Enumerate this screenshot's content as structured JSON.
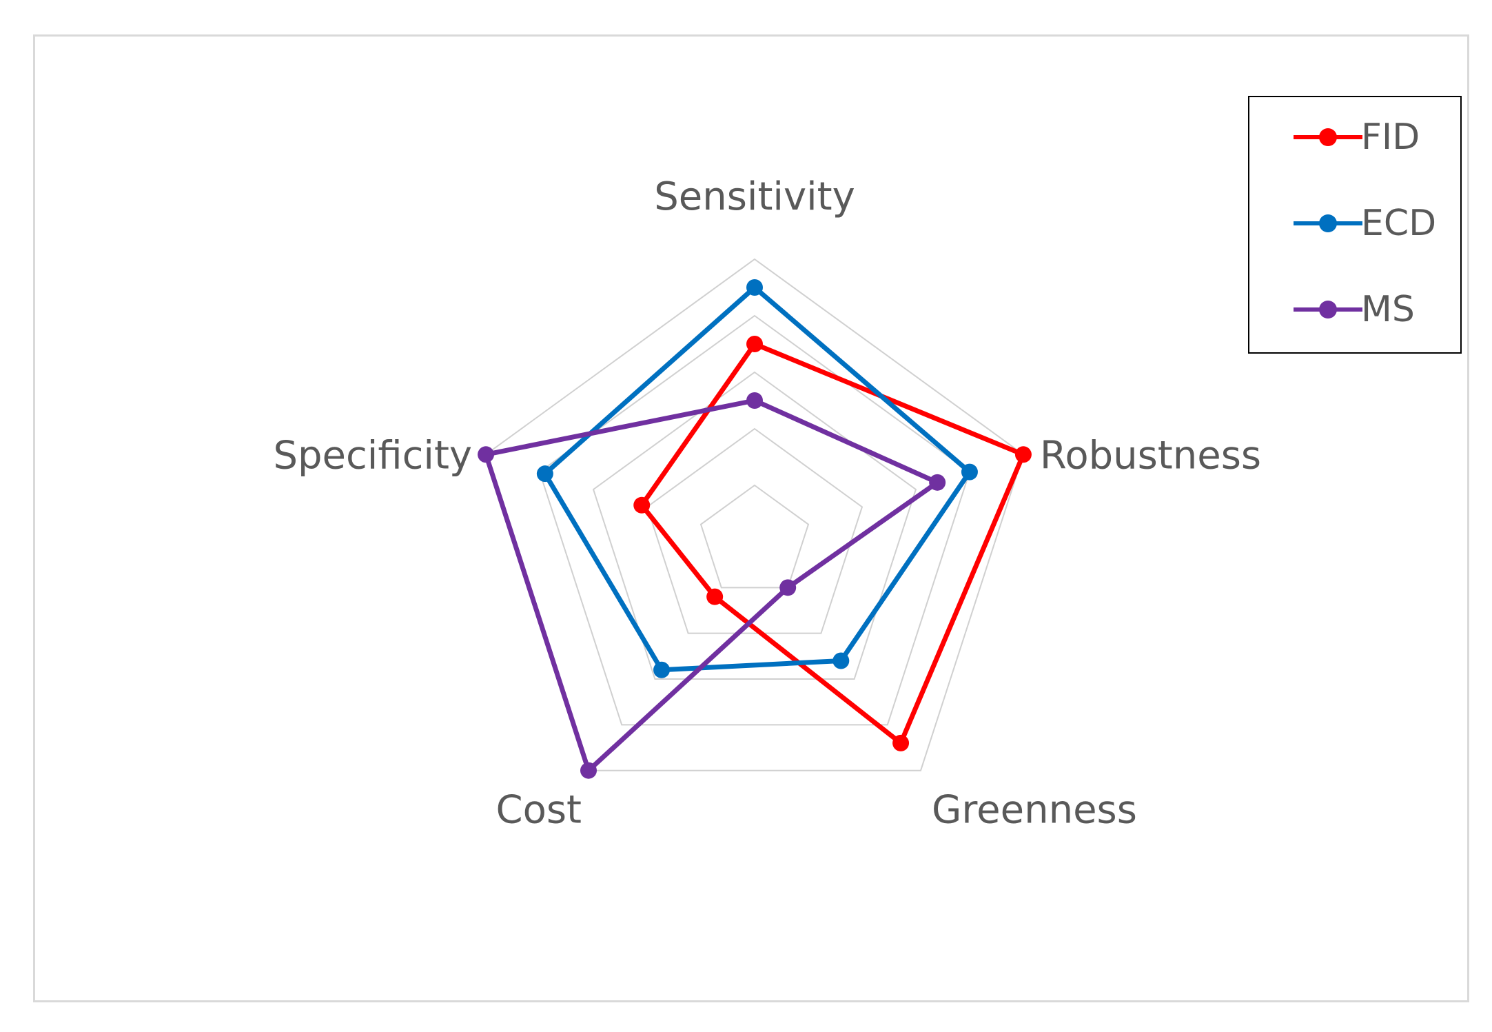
{
  "chart_data": {
    "type": "radar",
    "axes": [
      "Sensitivity",
      "Robustness",
      "Greenness",
      "Cost",
      "Specificity"
    ],
    "rmin": 0,
    "rmax": 5,
    "grid_levels": [
      1,
      2,
      3,
      4,
      5
    ],
    "grid": true,
    "legend_position": "top-right",
    "series": [
      {
        "name": "FID",
        "color": "#ff0000",
        "values": [
          3.5,
          5.0,
          4.4,
          1.2,
          2.1
        ]
      },
      {
        "name": "ECD",
        "color": "#0070c0",
        "values": [
          4.5,
          4.0,
          2.6,
          2.8,
          3.9
        ]
      },
      {
        "name": "MS",
        "color": "#7030a0",
        "values": [
          2.5,
          3.4,
          1.0,
          5.0,
          5.0
        ]
      }
    ]
  }
}
